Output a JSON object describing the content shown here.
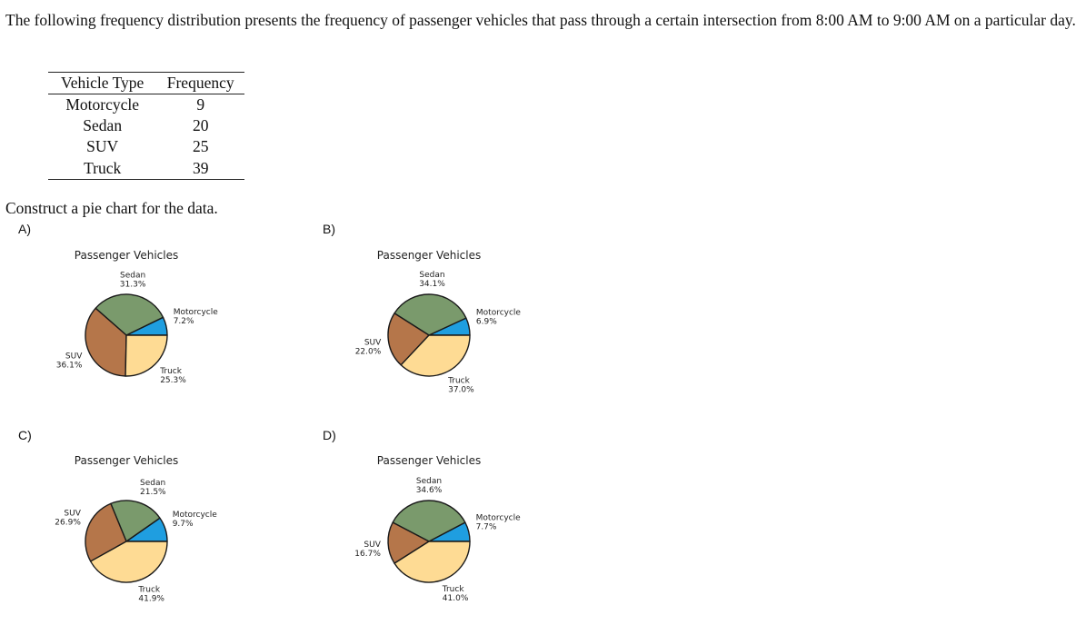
{
  "intro_text": "The following frequency distribution presents the frequency of passenger vehicles that pass through a certain intersection from 8:00 AM to 9:00 AM on a particular day.",
  "table": {
    "headers": [
      "Vehicle Type",
      "Frequency"
    ],
    "rows": [
      {
        "type": "Motorcycle",
        "frequency": "9"
      },
      {
        "type": "Sedan",
        "frequency": "20"
      },
      {
        "type": "SUV",
        "frequency": "25"
      },
      {
        "type": "Truck",
        "frequency": "39"
      }
    ]
  },
  "prompt": "Construct a pie chart for the data.",
  "colors": {
    "Motorcycle": "#1f9ee0",
    "Sedan": "#7a9a6c",
    "SUV": "#b5764a",
    "Truck": "#fedb94"
  },
  "chart_data": [
    {
      "option": "A)",
      "type": "pie",
      "title": "Passenger Vehicles",
      "slices": [
        {
          "label": "Motorcycle",
          "value": 7.2,
          "text": "7.2%"
        },
        {
          "label": "Sedan",
          "value": 31.3,
          "text": "31.3%"
        },
        {
          "label": "SUV",
          "value": 36.1,
          "text": "36.1%"
        },
        {
          "label": "Truck",
          "value": 25.3,
          "text": "25.3%"
        }
      ]
    },
    {
      "option": "B)",
      "type": "pie",
      "title": "Passenger Vehicles",
      "slices": [
        {
          "label": "Motorcycle",
          "value": 6.9,
          "text": "6.9%"
        },
        {
          "label": "Sedan",
          "value": 34.1,
          "text": "34.1%"
        },
        {
          "label": "SUV",
          "value": 22.0,
          "text": "22.0%"
        },
        {
          "label": "Truck",
          "value": 37.0,
          "text": "37.0%"
        }
      ]
    },
    {
      "option": "C)",
      "type": "pie",
      "title": "Passenger Vehicles",
      "slices": [
        {
          "label": "Motorcycle",
          "value": 9.7,
          "text": "9.7%"
        },
        {
          "label": "Sedan",
          "value": 21.5,
          "text": "21.5%"
        },
        {
          "label": "SUV",
          "value": 26.9,
          "text": "26.9%"
        },
        {
          "label": "Truck",
          "value": 41.9,
          "text": "41.9%"
        }
      ]
    },
    {
      "option": "D)",
      "type": "pie",
      "title": "Passenger Vehicles",
      "slices": [
        {
          "label": "Motorcycle",
          "value": 7.7,
          "text": "7.7%"
        },
        {
          "label": "Sedan",
          "value": 34.6,
          "text": "34.6%"
        },
        {
          "label": "SUV",
          "value": 16.7,
          "text": "16.7%"
        },
        {
          "label": "Truck",
          "value": 41.0,
          "text": "41.0%"
        }
      ]
    }
  ]
}
